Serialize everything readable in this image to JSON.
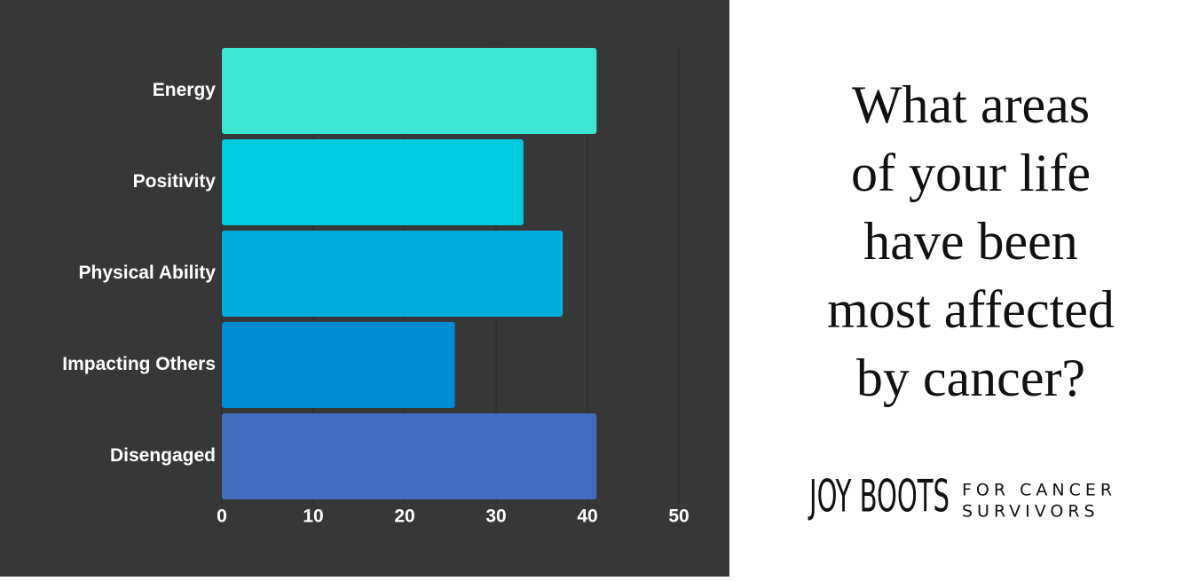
{
  "chart_data": {
    "type": "hbar",
    "categories": [
      "Energy",
      "Positivity",
      "Physical Ability",
      "Impacting Others",
      "Disengaged"
    ],
    "values": [
      41,
      33,
      37.3,
      25.5,
      41
    ],
    "colors": [
      "#3de4d4",
      "#00cbdc",
      "#00addf",
      "#008cd5",
      "#436cbc"
    ],
    "xlim": [
      0,
      50
    ],
    "xticks": [
      0,
      10,
      20,
      30,
      40,
      50
    ],
    "grid": true
  },
  "title_lines": [
    "What areas",
    "of your life",
    "have been",
    "most affected",
    "by cancer?"
  ],
  "logo": {
    "name": "JOY BOOTS",
    "tagline": [
      "FOR CANCER",
      "SURVIVORS"
    ]
  }
}
